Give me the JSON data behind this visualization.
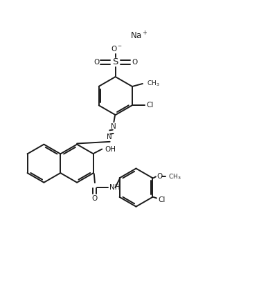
{
  "bg_color": "#ffffff",
  "line_color": "#1a1a1a",
  "text_color": "#1a1a1a",
  "line_width": 1.4,
  "font_size": 7.5,
  "figsize": [
    3.87,
    4.38
  ],
  "dpi": 100,
  "xlim": [
    0,
    10
  ],
  "ylim": [
    0,
    11.4
  ]
}
